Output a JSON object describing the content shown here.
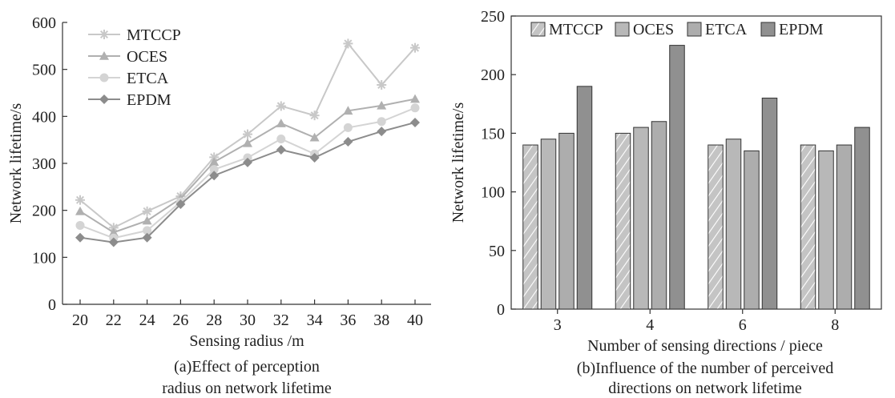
{
  "colors": {
    "MTCCP": "#c8c8c8",
    "OCES": "#b0b0b0",
    "ETCA": "#d4d4d4",
    "EPDM": "#8c8c8c",
    "bar_MTCCP": "#c4c4c4",
    "bar_OCES": "#b8b8b8",
    "bar_ETCA": "#adadad",
    "bar_EPDM": "#909090"
  },
  "chart_data": [
    {
      "type": "line",
      "x": [
        20,
        22,
        24,
        26,
        28,
        30,
        32,
        34,
        36,
        38,
        40
      ],
      "xticks": [
        "20",
        "22",
        "24",
        "26",
        "28",
        "30",
        "32",
        "34",
        "36",
        "38",
        "40"
      ],
      "xlabel": "Sensing radius /m",
      "ylabel": "Network lifetime/s",
      "ylim": [
        0,
        600
      ],
      "yticks": [
        "0",
        "100",
        "200",
        "300",
        "400",
        "500",
        "600"
      ],
      "legend": "top-left",
      "series": [
        {
          "name": "MTCCP",
          "marker": "star",
          "values": [
            222,
            163,
            198,
            230,
            313,
            362,
            422,
            402,
            555,
            467,
            546
          ]
        },
        {
          "name": "OCES",
          "marker": "triangle",
          "values": [
            198,
            153,
            178,
            225,
            303,
            343,
            385,
            355,
            412,
            423,
            437
          ]
        },
        {
          "name": "ETCA",
          "marker": "circle",
          "values": [
            168,
            141,
            157,
            218,
            287,
            312,
            352,
            320,
            376,
            389,
            418
          ]
        },
        {
          "name": "EPDM",
          "marker": "diamond",
          "values": [
            142,
            132,
            142,
            213,
            274,
            302,
            329,
            312,
            346,
            368,
            387
          ]
        }
      ],
      "caption": [
        "(a)Effect of perception",
        "radius on network lifetime"
      ]
    },
    {
      "type": "bar",
      "categories": [
        "3",
        "4",
        "6",
        "8"
      ],
      "xlabel": "Number of sensing directions / piece",
      "ylabel": "Network lifetime/s",
      "ylim": [
        0,
        250
      ],
      "yticks": [
        "0",
        "50",
        "100",
        "150",
        "200",
        "250"
      ],
      "legend": "top",
      "series": [
        {
          "name": "MTCCP",
          "pattern": "hatched",
          "values": [
            140,
            150,
            140,
            140
          ]
        },
        {
          "name": "OCES",
          "values": [
            145,
            155,
            145,
            135
          ]
        },
        {
          "name": "ETCA",
          "values": [
            150,
            160,
            135,
            140
          ]
        },
        {
          "name": "EPDM",
          "values": [
            190,
            225,
            180,
            155
          ]
        }
      ],
      "caption": [
        "(b)Influence of the number of perceived",
        "directions on network lifetime"
      ]
    }
  ]
}
